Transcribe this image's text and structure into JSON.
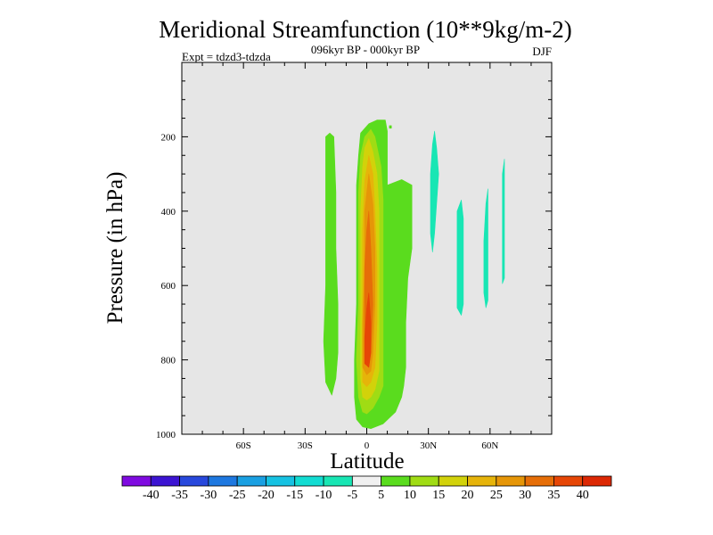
{
  "chart_data": {
    "type": "heatmap",
    "subtype": "filled-contour",
    "title": "Meridional Streamfunction (10**9kg/m-2)",
    "subtitle_center": "096kyr BP - 000kyr BP",
    "subtitle_left": "Expt = tdzd3-tdzda",
    "subtitle_right": "DJF",
    "xlabel": "Latitude",
    "ylabel": "Pressure (in hPa)",
    "xlim": [
      -90,
      90
    ],
    "ylim": [
      0,
      1000
    ],
    "y_inverted": true,
    "x_ticks": [
      {
        "value": -60,
        "label": "60S"
      },
      {
        "value": -30,
        "label": "30S"
      },
      {
        "value": 0,
        "label": "0"
      },
      {
        "value": 30,
        "label": "30N"
      },
      {
        "value": 60,
        "label": "60N"
      }
    ],
    "y_ticks": [
      {
        "value": 200,
        "label": "200"
      },
      {
        "value": 400,
        "label": "400"
      },
      {
        "value": 600,
        "label": "600"
      },
      {
        "value": 800,
        "label": "800"
      },
      {
        "value": 1000,
        "label": "1000"
      }
    ],
    "plot_background": "#e6e6e6",
    "colorbar": {
      "levels": [
        -40,
        -35,
        -30,
        -25,
        -20,
        -15,
        -10,
        -5,
        5,
        10,
        15,
        20,
        25,
        30,
        35,
        40
      ],
      "labels": [
        "-40",
        "-35",
        "-30",
        "-25",
        "-20",
        "-15",
        "-10",
        "-5",
        "5",
        "10",
        "15",
        "20",
        "25",
        "30",
        "35",
        "40"
      ],
      "colors": [
        "#7f0ae0",
        "#3c14d2",
        "#2848dc",
        "#1e78e0",
        "#1aa0e2",
        "#16c2e2",
        "#12dcd2",
        "#18e6b4",
        "#f0f0f0",
        "#5adc1e",
        "#a0dc14",
        "#d2d20a",
        "#e6b40a",
        "#e69608",
        "#e66e08",
        "#e64606",
        "#dc2804"
      ]
    },
    "regions": [
      {
        "name": "sh-positive-lobe",
        "level": 5,
        "color": "#5adc1e",
        "polygon": [
          [
            -18,
            190
          ],
          [
            -16,
            200
          ],
          [
            -15,
            350
          ],
          [
            -15,
            500
          ],
          [
            -14,
            650
          ],
          [
            -14,
            780
          ],
          [
            -15,
            850
          ],
          [
            -17,
            895
          ],
          [
            -20,
            860
          ],
          [
            -21,
            750
          ],
          [
            -20,
            600
          ],
          [
            -20,
            450
          ],
          [
            -20,
            300
          ],
          [
            -20,
            200
          ]
        ]
      },
      {
        "name": "main-cell-5",
        "level": 5,
        "color": "#5adc1e",
        "polygon": [
          [
            9,
            155
          ],
          [
            10,
            185
          ],
          [
            10,
            330
          ],
          [
            17,
            315
          ],
          [
            22,
            330
          ],
          [
            22,
            500
          ],
          [
            20,
            580
          ],
          [
            19,
            700
          ],
          [
            19,
            820
          ],
          [
            18,
            870
          ],
          [
            17,
            900
          ],
          [
            14,
            940
          ],
          [
            8,
            972
          ],
          [
            2,
            985
          ],
          [
            -2,
            980
          ],
          [
            -5,
            960
          ],
          [
            -6,
            900
          ],
          [
            -6,
            800
          ],
          [
            -5,
            650
          ],
          [
            -5,
            500
          ],
          [
            -5,
            330
          ],
          [
            -4,
            250
          ],
          [
            -3,
            190
          ],
          [
            1,
            165
          ],
          [
            5,
            155
          ]
        ]
      },
      {
        "name": "main-cell-10",
        "level": 10,
        "color": "#a0dc14",
        "polygon": [
          [
            2,
            180
          ],
          [
            4,
            200
          ],
          [
            7,
            280
          ],
          [
            8,
            370
          ],
          [
            8,
            500
          ],
          [
            8,
            650
          ],
          [
            8,
            800
          ],
          [
            8,
            870
          ],
          [
            6,
            900
          ],
          [
            3,
            930
          ],
          [
            0,
            945
          ],
          [
            -2,
            940
          ],
          [
            -4,
            900
          ],
          [
            -5,
            800
          ],
          [
            -4,
            650
          ],
          [
            -4,
            500
          ],
          [
            -4,
            350
          ],
          [
            -3,
            250
          ],
          [
            -1,
            200
          ]
        ]
      },
      {
        "name": "main-cell-15",
        "level": 15,
        "color": "#d2d20a",
        "polygon": [
          [
            1,
            205
          ],
          [
            3,
            240
          ],
          [
            5,
            300
          ],
          [
            6,
            400
          ],
          [
            6,
            550
          ],
          [
            6,
            700
          ],
          [
            6,
            830
          ],
          [
            4,
            880
          ],
          [
            2,
            900
          ],
          [
            0,
            908
          ],
          [
            -2,
            900
          ],
          [
            -3,
            850
          ],
          [
            -3,
            700
          ],
          [
            -3,
            550
          ],
          [
            -3,
            400
          ],
          [
            -2,
            280
          ],
          [
            -1,
            230
          ]
        ]
      },
      {
        "name": "main-cell-20",
        "level": 20,
        "color": "#e6b40a",
        "polygon": [
          [
            1,
            250
          ],
          [
            3,
            300
          ],
          [
            4,
            400
          ],
          [
            5,
            550
          ],
          [
            5,
            700
          ],
          [
            4,
            820
          ],
          [
            2,
            860
          ],
          [
            0,
            872
          ],
          [
            -2,
            860
          ],
          [
            -2,
            750
          ],
          [
            -2,
            600
          ],
          [
            -2,
            450
          ],
          [
            -1,
            320
          ]
        ]
      },
      {
        "name": "main-cell-25",
        "level": 25,
        "color": "#e69608",
        "polygon": [
          [
            1,
            300
          ],
          [
            3,
            380
          ],
          [
            4,
            500
          ],
          [
            4,
            650
          ],
          [
            3,
            780
          ],
          [
            2,
            830
          ],
          [
            0,
            840
          ],
          [
            -2,
            820
          ],
          [
            -2,
            700
          ],
          [
            -1,
            550
          ],
          [
            -1,
            400
          ]
        ]
      },
      {
        "name": "main-cell-30",
        "level": 30,
        "color": "#e66e08",
        "polygon": [
          [
            1,
            400
          ],
          [
            2,
            500
          ],
          [
            3,
            650
          ],
          [
            2,
            780
          ],
          [
            1,
            820
          ],
          [
            -1,
            810
          ],
          [
            -1,
            700
          ],
          [
            -1,
            550
          ],
          [
            0,
            450
          ]
        ]
      },
      {
        "name": "main-cell-35",
        "level": 35,
        "color": "#e64606",
        "polygon": [
          [
            1,
            620
          ],
          [
            2,
            700
          ],
          [
            2,
            780
          ],
          [
            1,
            820
          ],
          [
            -1,
            810
          ],
          [
            -1,
            740
          ],
          [
            0,
            660
          ]
        ]
      },
      {
        "name": "nh-negative-1",
        "level": -5,
        "color": "#18e6b4",
        "polygon": [
          [
            33,
            185
          ],
          [
            34,
            230
          ],
          [
            35,
            300
          ],
          [
            34,
            380
          ],
          [
            33,
            460
          ],
          [
            32,
            510
          ],
          [
            31,
            460
          ],
          [
            31,
            300
          ],
          [
            32,
            220
          ]
        ]
      },
      {
        "name": "nh-negative-2",
        "level": -5,
        "color": "#18e6b4",
        "polygon": [
          [
            46,
            370
          ],
          [
            47,
            420
          ],
          [
            47,
            550
          ],
          [
            47,
            650
          ],
          [
            46,
            680
          ],
          [
            44,
            660
          ],
          [
            44,
            500
          ],
          [
            44,
            400
          ]
        ]
      },
      {
        "name": "nh-negative-3",
        "level": -5,
        "color": "#18e6b4",
        "polygon": [
          [
            59,
            340
          ],
          [
            59,
            400
          ],
          [
            59,
            550
          ],
          [
            59,
            640
          ],
          [
            58,
            660
          ],
          [
            57,
            620
          ],
          [
            57,
            480
          ],
          [
            58,
            380
          ]
        ]
      },
      {
        "name": "nh-negative-4",
        "level": -5,
        "color": "#18e6b4",
        "polygon": [
          [
            67,
            260
          ],
          [
            67,
            330
          ],
          [
            67,
            450
          ],
          [
            67,
            580
          ],
          [
            66,
            595
          ],
          [
            66,
            540
          ],
          [
            66,
            400
          ],
          [
            66,
            300
          ]
        ]
      },
      {
        "name": "nh-speck",
        "level": 5,
        "color": "#5adc1e",
        "polygon": [
          [
            11,
            170
          ],
          [
            12,
            170
          ],
          [
            12,
            177
          ],
          [
            11,
            177
          ]
        ]
      }
    ]
  }
}
